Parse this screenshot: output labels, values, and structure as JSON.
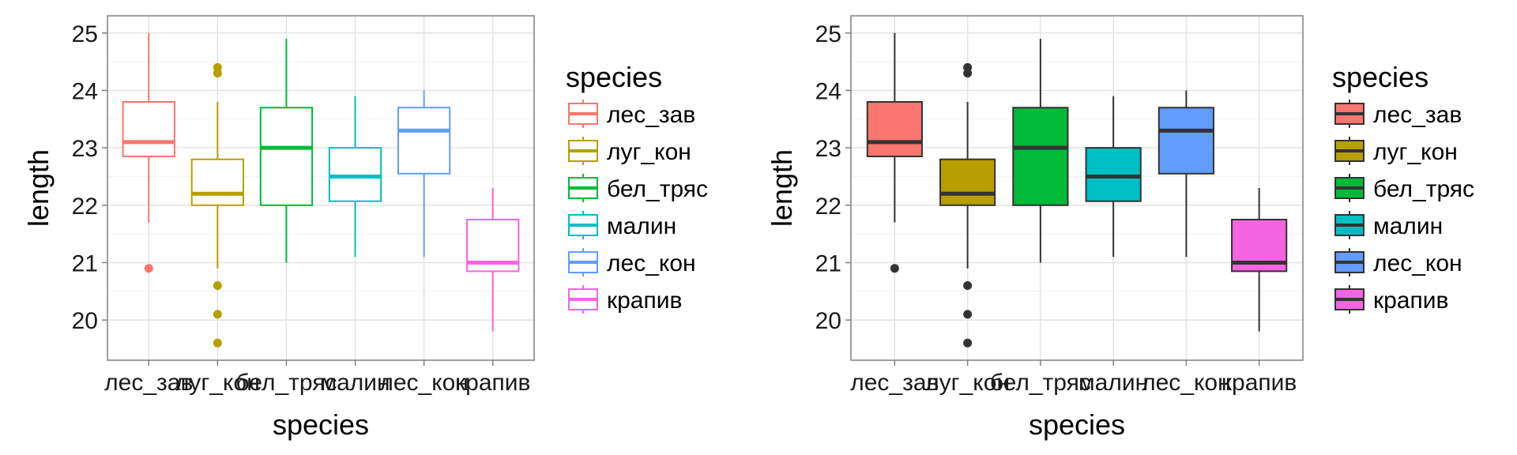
{
  "chart_data": [
    {
      "type": "boxplot",
      "style": "outline",
      "xlabel": "species",
      "ylabel": "length",
      "ylim": [
        19.3,
        25.3
      ],
      "yticks": [
        20,
        21,
        22,
        23,
        24,
        25
      ],
      "grid": true,
      "legend_title": "species",
      "legend_position": "right",
      "categories": [
        "лес_зав",
        "луг_кон",
        "бел_тряс",
        "малин",
        "лес_кон",
        "крапив"
      ],
      "colors": [
        "#F8766D",
        "#B79F00",
        "#00BA38",
        "#00BFC4",
        "#619CFF",
        "#F564E3"
      ],
      "series": [
        {
          "name": "лес_зав",
          "whisker_low": 21.7,
          "q1": 22.85,
          "median": 23.1,
          "q3": 23.8,
          "whisker_high": 25.0,
          "outliers": [
            20.9
          ]
        },
        {
          "name": "луг_кон",
          "whisker_low": 20.9,
          "q1": 22.0,
          "median": 22.2,
          "q3": 22.8,
          "whisker_high": 23.8,
          "outliers": [
            24.4,
            24.3,
            20.6,
            20.1,
            19.6
          ]
        },
        {
          "name": "бел_тряс",
          "whisker_low": 21.0,
          "q1": 22.0,
          "median": 23.0,
          "q3": 23.7,
          "whisker_high": 24.9,
          "outliers": []
        },
        {
          "name": "малин",
          "whisker_low": 21.1,
          "q1": 22.07,
          "median": 22.5,
          "q3": 23.0,
          "whisker_high": 23.9,
          "outliers": []
        },
        {
          "name": "лес_кон",
          "whisker_low": 21.1,
          "q1": 22.55,
          "median": 23.3,
          "q3": 23.7,
          "whisker_high": 24.0,
          "outliers": []
        },
        {
          "name": "крапив",
          "whisker_low": 19.8,
          "q1": 20.85,
          "median": 21.0,
          "q3": 21.75,
          "whisker_high": 22.3,
          "outliers": []
        }
      ]
    },
    {
      "type": "boxplot",
      "style": "filled",
      "xlabel": "species",
      "ylabel": "length",
      "ylim": [
        19.3,
        25.3
      ],
      "yticks": [
        20,
        21,
        22,
        23,
        24,
        25
      ],
      "grid": true,
      "legend_title": "species",
      "legend_position": "right",
      "categories": [
        "лес_зав",
        "луг_кон",
        "бел_тряс",
        "малин",
        "лес_кон",
        "крапив"
      ],
      "colors": [
        "#F8766D",
        "#B79F00",
        "#00BA38",
        "#00BFC4",
        "#619CFF",
        "#F564E3"
      ],
      "series": [
        {
          "name": "лес_зав",
          "whisker_low": 21.7,
          "q1": 22.85,
          "median": 23.1,
          "q3": 23.8,
          "whisker_high": 25.0,
          "outliers": [
            20.9
          ]
        },
        {
          "name": "луг_кон",
          "whisker_low": 20.9,
          "q1": 22.0,
          "median": 22.2,
          "q3": 22.8,
          "whisker_high": 23.8,
          "outliers": [
            24.4,
            24.3,
            20.6,
            20.1,
            19.6
          ]
        },
        {
          "name": "бел_тряс",
          "whisker_low": 21.0,
          "q1": 22.0,
          "median": 23.0,
          "q3": 23.7,
          "whisker_high": 24.9,
          "outliers": []
        },
        {
          "name": "малин",
          "whisker_low": 21.1,
          "q1": 22.07,
          "median": 22.5,
          "q3": 23.0,
          "whisker_high": 23.9,
          "outliers": []
        },
        {
          "name": "лес_кон",
          "whisker_low": 21.1,
          "q1": 22.55,
          "median": 23.3,
          "q3": 23.7,
          "whisker_high": 24.0,
          "outliers": []
        },
        {
          "name": "крапив",
          "whisker_low": 19.8,
          "q1": 20.85,
          "median": 21.0,
          "q3": 21.75,
          "whisker_high": 22.3,
          "outliers": []
        }
      ]
    }
  ]
}
